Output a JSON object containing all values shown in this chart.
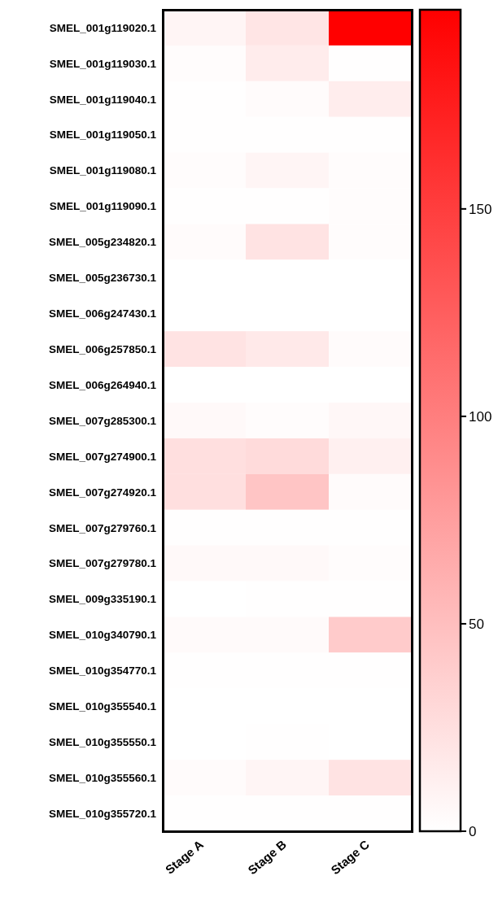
{
  "chart_data": {
    "type": "heatmap",
    "categories": [
      "Stage A",
      "Stage B",
      "Stage C"
    ],
    "y_categories": [
      "SMEL_001g119020.1",
      "SMEL_001g119030.1",
      "SMEL_001g119040.1",
      "SMEL_001g119050.1",
      "SMEL_001g119080.1",
      "SMEL_001g119090.1",
      "SMEL_005g234820.1",
      "SMEL_005g236730.1",
      "SMEL_006g247430.1",
      "SMEL_006g257850.1",
      "SMEL_006g264940.1",
      "SMEL_007g285300.1",
      "SMEL_007g274900.1",
      "SMEL_007g274920.1",
      "SMEL_007g279760.1",
      "SMEL_007g279780.1",
      "SMEL_009g335190.1",
      "SMEL_010g340790.1",
      "SMEL_010g354770.1",
      "SMEL_010g355540.1",
      "SMEL_010g355550.1",
      "SMEL_010g355560.1",
      "SMEL_010g355720.1"
    ],
    "cells": [
      [
        8,
        20,
        198
      ],
      [
        2,
        15,
        1
      ],
      [
        1,
        3,
        14
      ],
      [
        0.5,
        1,
        1
      ],
      [
        2,
        8,
        2
      ],
      [
        1,
        1,
        2
      ],
      [
        3,
        22,
        2
      ],
      [
        0,
        0,
        0
      ],
      [
        0,
        0,
        0
      ],
      [
        22,
        17,
        3
      ],
      [
        0,
        0,
        0
      ],
      [
        5,
        2,
        6
      ],
      [
        25,
        28,
        12
      ],
      [
        25,
        45,
        3
      ],
      [
        1,
        1,
        1
      ],
      [
        5,
        5,
        2
      ],
      [
        0,
        1,
        1
      ],
      [
        4,
        4,
        40
      ],
      [
        1,
        1,
        0.5
      ],
      [
        0,
        0,
        0
      ],
      [
        0,
        1,
        0
      ],
      [
        3,
        8,
        22
      ],
      [
        1,
        1,
        1
      ]
    ],
    "clim": [
      0,
      198
    ],
    "cticks": [
      0,
      50,
      100,
      150
    ]
  }
}
